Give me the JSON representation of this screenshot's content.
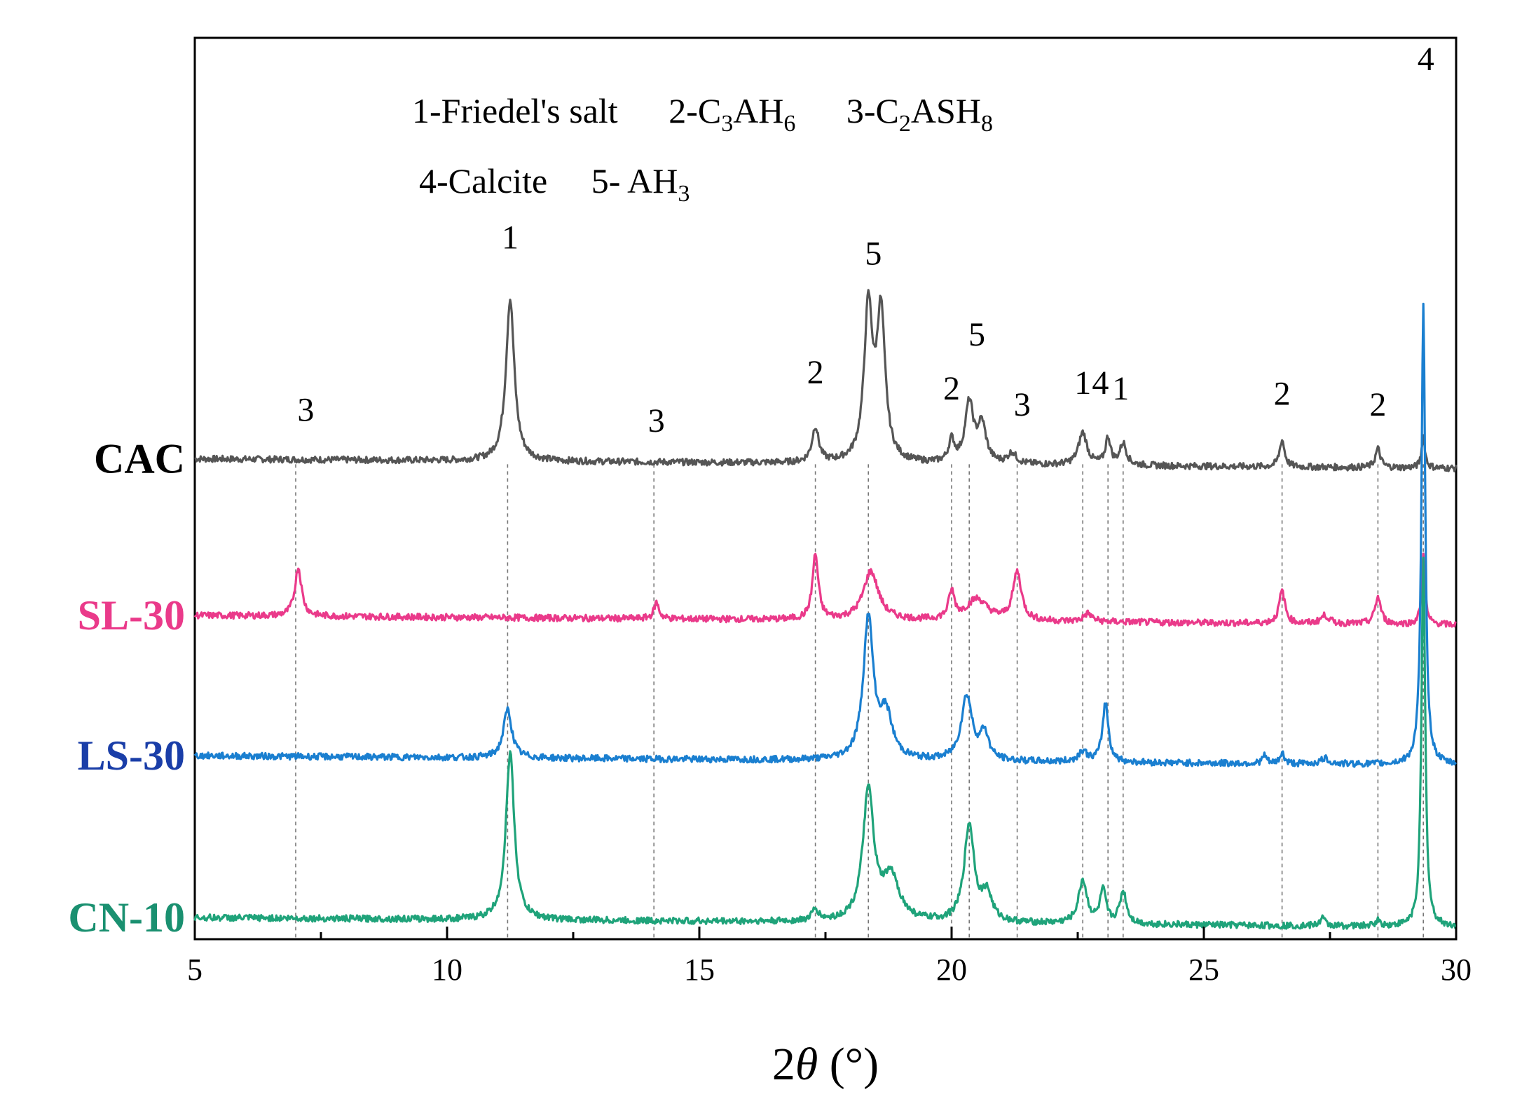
{
  "chart_data": {
    "type": "line",
    "xlabel_main": "2",
    "xlabel_theta": "θ",
    "xlabel_unit": " (°)",
    "xlim": [
      5,
      30
    ],
    "ylabel": "",
    "xticks": [
      "5",
      "10",
      "15",
      "20",
      "25",
      "30"
    ],
    "legend": {
      "row1": [
        {
          "prefix": "1-Friedel's salt"
        },
        {
          "prefix": "2-C",
          "sub1": "3",
          "mid": "AH",
          "sub2": "6"
        },
        {
          "prefix": "3-C",
          "sub1": "2",
          "mid": "ASH",
          "sub2": "8"
        }
      ],
      "row2": [
        {
          "prefix": "4-Calcite"
        },
        {
          "prefix": "5- AH",
          "sub1": "3"
        }
      ]
    },
    "series": [
      {
        "name": "CAC",
        "color": "#555555",
        "baseline": 0.67,
        "peaks": [
          [
            11.25,
            0.3,
            0.1
          ],
          [
            17.3,
            0.065,
            0.08
          ],
          [
            18.35,
            0.28,
            0.1
          ],
          [
            18.6,
            0.27,
            0.1
          ],
          [
            20.0,
            0.04,
            0.07
          ],
          [
            20.35,
            0.11,
            0.1
          ],
          [
            20.6,
            0.07,
            0.1
          ],
          [
            21.2,
            0.02,
            0.1
          ],
          [
            22.6,
            0.06,
            0.1
          ],
          [
            23.1,
            0.05,
            0.06
          ],
          [
            23.4,
            0.04,
            0.08
          ],
          [
            26.55,
            0.05,
            0.06
          ],
          [
            28.45,
            0.035,
            0.06
          ],
          [
            29.35,
            0.06,
            0.04
          ]
        ]
      },
      {
        "name": "SL-30",
        "color": "#ea3a8a",
        "baseline": 0.38,
        "peaks": [
          [
            7.05,
            0.09,
            0.08
          ],
          [
            14.15,
            0.03,
            0.06
          ],
          [
            17.3,
            0.12,
            0.07
          ],
          [
            18.4,
            0.09,
            0.18
          ],
          [
            20.0,
            0.05,
            0.07
          ],
          [
            20.5,
            0.04,
            0.25
          ],
          [
            21.3,
            0.09,
            0.1
          ],
          [
            22.7,
            0.015,
            0.1
          ],
          [
            26.55,
            0.06,
            0.07
          ],
          [
            27.4,
            0.015,
            0.1
          ],
          [
            28.45,
            0.05,
            0.07
          ],
          [
            29.35,
            0.13,
            0.04
          ]
        ]
      },
      {
        "name": "LS-30",
        "color": "#1a7fd0",
        "baseline": 0.12,
        "peaks": [
          [
            11.2,
            0.09,
            0.1
          ],
          [
            18.35,
            0.26,
            0.12
          ],
          [
            18.7,
            0.08,
            0.15
          ],
          [
            20.3,
            0.12,
            0.13
          ],
          [
            20.65,
            0.05,
            0.1
          ],
          [
            22.6,
            0.02,
            0.1
          ],
          [
            23.05,
            0.11,
            0.07
          ],
          [
            26.2,
            0.015,
            0.05
          ],
          [
            26.55,
            0.02,
            0.05
          ],
          [
            27.4,
            0.01,
            0.1
          ],
          [
            29.35,
            0.85,
            0.045
          ]
        ]
      },
      {
        "name": "CN-10",
        "color": "#1fa37a",
        "baseline": -0.18,
        "peaks": [
          [
            11.25,
            0.31,
            0.1
          ],
          [
            17.3,
            0.02,
            0.08
          ],
          [
            18.35,
            0.24,
            0.13
          ],
          [
            18.8,
            0.08,
            0.2
          ],
          [
            20.35,
            0.18,
            0.12
          ],
          [
            20.7,
            0.05,
            0.12
          ],
          [
            22.6,
            0.08,
            0.1
          ],
          [
            23.0,
            0.06,
            0.07
          ],
          [
            23.4,
            0.06,
            0.08
          ],
          [
            27.35,
            0.015,
            0.06
          ],
          [
            28.45,
            0.01,
            0.06
          ],
          [
            29.35,
            0.68,
            0.045
          ]
        ]
      }
    ],
    "reference_lines": [
      7.0,
      11.2,
      14.1,
      17.3,
      18.35,
      20.0,
      20.35,
      21.3,
      22.6,
      23.1,
      23.4,
      26.55,
      28.45,
      29.35
    ],
    "peak_labels": [
      {
        "text": "3",
        "x": 7.2,
        "y": 0.74
      },
      {
        "text": "1",
        "x": 11.25,
        "y": 1.06
      },
      {
        "text": "3",
        "x": 14.15,
        "y": 0.72
      },
      {
        "text": "2",
        "x": 17.3,
        "y": 0.81
      },
      {
        "text": "5",
        "x": 18.45,
        "y": 1.03
      },
      {
        "text": "2",
        "x": 20.0,
        "y": 0.78
      },
      {
        "text": "5",
        "x": 20.5,
        "y": 0.88
      },
      {
        "text": "3",
        "x": 21.4,
        "y": 0.75
      },
      {
        "text": "1",
        "x": 22.6,
        "y": 0.79
      },
      {
        "text": "4",
        "x": 22.95,
        "y": 0.79
      },
      {
        "text": "1",
        "x": 23.35,
        "y": 0.78
      },
      {
        "text": "2",
        "x": 26.55,
        "y": 0.77
      },
      {
        "text": "2",
        "x": 28.45,
        "y": 0.75
      },
      {
        "text": "4",
        "x": 29.4,
        "y": 1.39
      }
    ]
  }
}
